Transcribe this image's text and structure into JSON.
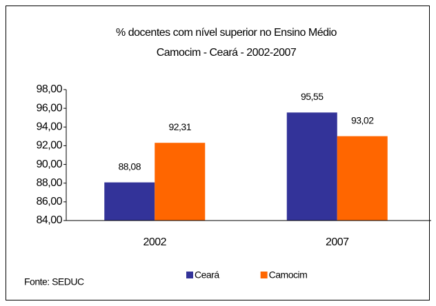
{
  "chart_data": {
    "type": "bar",
    "title": "% docentes com nível superior no Ensino Médio",
    "subtitle": "Camocim - Ceará - 2002-2007",
    "categories": [
      "2002",
      "2007"
    ],
    "series": [
      {
        "name": "Ceará",
        "color": "#333399",
        "values": [
          88.08,
          95.55
        ],
        "value_labels": [
          "88,08",
          "95,55"
        ]
      },
      {
        "name": "Camocim",
        "color": "#ff6600",
        "values": [
          92.31,
          93.02
        ],
        "value_labels": [
          "92,31",
          "93,02"
        ]
      }
    ],
    "ylim": [
      84,
      98
    ],
    "yticks": [
      {
        "value": 84,
        "label": "84,00"
      },
      {
        "value": 86,
        "label": "86,00"
      },
      {
        "value": 88,
        "label": "88,00"
      },
      {
        "value": 90,
        "label": "90,00"
      },
      {
        "value": 92,
        "label": "92,00"
      },
      {
        "value": 94,
        "label": "94,00"
      },
      {
        "value": 96,
        "label": "96,00"
      },
      {
        "value": 98,
        "label": "98,00"
      }
    ],
    "grid": false,
    "legend": "bottom",
    "source": "Fonte: SEDUC"
  }
}
